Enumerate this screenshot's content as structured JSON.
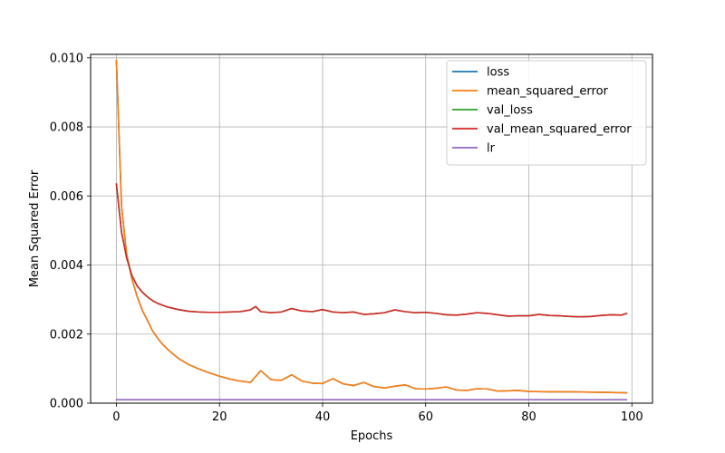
{
  "chart_data": {
    "type": "line",
    "title": "",
    "xlabel": "Epochs",
    "ylabel": "Mean Squared Error",
    "xlim": [
      -5,
      104
    ],
    "ylim": [
      0,
      0.0101
    ],
    "xticks": [
      0,
      20,
      40,
      60,
      80,
      100
    ],
    "xtick_labels": [
      "0",
      "20",
      "40",
      "60",
      "80",
      "100"
    ],
    "yticks": [
      0,
      0.002,
      0.004,
      0.006,
      0.008,
      0.01
    ],
    "ytick_labels": [
      "0.000",
      "0.002",
      "0.004",
      "0.006",
      "0.008",
      "0.010"
    ],
    "grid": true,
    "legend_position": "top-right",
    "series": [
      {
        "name": "loss",
        "color": "#1f77b4",
        "x": [
          0,
          1,
          2,
          3,
          4,
          5,
          6,
          7,
          8,
          9,
          10,
          12,
          14,
          16,
          18,
          20,
          22,
          24,
          26,
          28,
          30,
          32,
          34,
          36,
          38,
          40,
          42,
          44,
          46,
          48,
          50,
          52,
          54,
          56,
          58,
          60,
          62,
          64,
          66,
          68,
          70,
          72,
          74,
          76,
          78,
          80,
          84,
          88,
          92,
          96,
          99
        ],
        "values": [
          0.00993,
          0.0057,
          0.0043,
          0.0036,
          0.0031,
          0.0027,
          0.0024,
          0.0021,
          0.00188,
          0.0017,
          0.00155,
          0.0013,
          0.00112,
          0.00099,
          0.00088,
          0.00078,
          0.0007,
          0.00064,
          0.0006,
          0.00094,
          0.00068,
          0.00066,
          0.00082,
          0.00064,
          0.00058,
          0.00057,
          0.00071,
          0.00056,
          0.00051,
          0.0006,
          0.00048,
          0.00044,
          0.00049,
          0.00053,
          0.00042,
          0.00041,
          0.00043,
          0.00047,
          0.00038,
          0.00037,
          0.00042,
          0.00041,
          0.00035,
          0.00036,
          0.00037,
          0.00034,
          0.00033,
          0.00033,
          0.00032,
          0.00031,
          0.0003
        ]
      },
      {
        "name": "mean_squared_error",
        "color": "#ff7f0e",
        "x": [
          0,
          1,
          2,
          3,
          4,
          5,
          6,
          7,
          8,
          9,
          10,
          12,
          14,
          16,
          18,
          20,
          22,
          24,
          26,
          28,
          30,
          32,
          34,
          36,
          38,
          40,
          42,
          44,
          46,
          48,
          50,
          52,
          54,
          56,
          58,
          60,
          62,
          64,
          66,
          68,
          70,
          72,
          74,
          76,
          78,
          80,
          84,
          88,
          92,
          96,
          99
        ],
        "values": [
          0.00993,
          0.0057,
          0.0043,
          0.0036,
          0.0031,
          0.0027,
          0.0024,
          0.0021,
          0.00188,
          0.0017,
          0.00155,
          0.0013,
          0.00112,
          0.00099,
          0.00088,
          0.00078,
          0.0007,
          0.00064,
          0.0006,
          0.00094,
          0.00068,
          0.00066,
          0.00082,
          0.00064,
          0.00058,
          0.00057,
          0.00071,
          0.00056,
          0.00051,
          0.0006,
          0.00048,
          0.00044,
          0.00049,
          0.00053,
          0.00042,
          0.00041,
          0.00043,
          0.00047,
          0.00038,
          0.00037,
          0.00042,
          0.00041,
          0.00035,
          0.00036,
          0.00037,
          0.00034,
          0.00033,
          0.00033,
          0.00032,
          0.00031,
          0.0003
        ]
      },
      {
        "name": "val_loss",
        "color": "#2ca02c",
        "x": [
          0,
          1,
          2,
          3,
          4,
          5,
          6,
          7,
          8,
          10,
          12,
          14,
          16,
          18,
          20,
          22,
          24,
          26,
          27,
          28,
          30,
          32,
          34,
          36,
          38,
          40,
          42,
          44,
          46,
          48,
          50,
          52,
          54,
          56,
          58,
          60,
          62,
          64,
          66,
          68,
          70,
          72,
          74,
          76,
          78,
          80,
          82,
          84,
          86,
          88,
          90,
          92,
          94,
          96,
          98,
          99
        ],
        "values": [
          0.00635,
          0.00495,
          0.0042,
          0.0037,
          0.0034,
          0.00322,
          0.00308,
          0.00297,
          0.00289,
          0.00278,
          0.00271,
          0.00266,
          0.00264,
          0.00263,
          0.00263,
          0.00264,
          0.00265,
          0.0027,
          0.0028,
          0.00265,
          0.00262,
          0.00264,
          0.00274,
          0.00267,
          0.00265,
          0.00271,
          0.00264,
          0.00262,
          0.00264,
          0.00257,
          0.00259,
          0.00262,
          0.0027,
          0.00265,
          0.00262,
          0.00263,
          0.0026,
          0.00256,
          0.00255,
          0.00258,
          0.00262,
          0.0026,
          0.00256,
          0.00252,
          0.00253,
          0.00253,
          0.00257,
          0.00254,
          0.00253,
          0.00251,
          0.0025,
          0.00251,
          0.00254,
          0.00256,
          0.00255,
          0.0026
        ]
      },
      {
        "name": "val_mean_squared_error",
        "color": "#d62728",
        "x": [
          0,
          1,
          2,
          3,
          4,
          5,
          6,
          7,
          8,
          10,
          12,
          14,
          16,
          18,
          20,
          22,
          24,
          26,
          27,
          28,
          30,
          32,
          34,
          36,
          38,
          40,
          42,
          44,
          46,
          48,
          50,
          52,
          54,
          56,
          58,
          60,
          62,
          64,
          66,
          68,
          70,
          72,
          74,
          76,
          78,
          80,
          82,
          84,
          86,
          88,
          90,
          92,
          94,
          96,
          98,
          99
        ],
        "values": [
          0.00635,
          0.00495,
          0.0042,
          0.0037,
          0.0034,
          0.00322,
          0.00308,
          0.00297,
          0.00289,
          0.00278,
          0.00271,
          0.00266,
          0.00264,
          0.00263,
          0.00263,
          0.00264,
          0.00265,
          0.0027,
          0.0028,
          0.00265,
          0.00262,
          0.00264,
          0.00274,
          0.00267,
          0.00265,
          0.00271,
          0.00264,
          0.00262,
          0.00264,
          0.00257,
          0.00259,
          0.00262,
          0.0027,
          0.00265,
          0.00262,
          0.00263,
          0.0026,
          0.00256,
          0.00255,
          0.00258,
          0.00262,
          0.0026,
          0.00256,
          0.00252,
          0.00253,
          0.00253,
          0.00257,
          0.00254,
          0.00253,
          0.00251,
          0.0025,
          0.00251,
          0.00254,
          0.00256,
          0.00255,
          0.0026
        ]
      },
      {
        "name": "lr",
        "color": "#9467bd",
        "x": [
          0,
          99
        ],
        "values": [
          0.0001,
          0.0001
        ]
      }
    ]
  }
}
